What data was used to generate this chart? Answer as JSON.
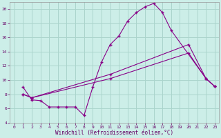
{
  "xlabel": "Windchill (Refroidissement éolien,°C)",
  "bg_color": "#cceee8",
  "grid_color": "#aad4cc",
  "line_color": "#880088",
  "xlim": [
    -0.5,
    23.5
  ],
  "ylim": [
    4,
    21
  ],
  "xticks": [
    0,
    1,
    2,
    3,
    4,
    5,
    6,
    7,
    8,
    9,
    10,
    11,
    12,
    13,
    14,
    15,
    16,
    17,
    18,
    19,
    20,
    21,
    22,
    23
  ],
  "yticks": [
    4,
    6,
    8,
    10,
    12,
    14,
    16,
    18,
    20
  ],
  "line1_x": [
    1,
    2,
    3,
    4,
    5,
    6,
    7,
    8,
    9,
    10,
    11,
    12,
    13,
    14,
    15,
    16,
    17,
    18,
    22,
    23
  ],
  "line1_y": [
    9.0,
    7.2,
    7.1,
    6.2,
    6.2,
    6.2,
    6.2,
    5.0,
    9.0,
    12.5,
    15.0,
    16.2,
    18.3,
    19.5,
    20.3,
    20.8,
    19.5,
    17.0,
    10.2,
    9.1
  ],
  "line2_x": [
    1,
    2,
    11,
    20,
    22,
    23
  ],
  "line2_y": [
    8.0,
    7.5,
    10.8,
    15.0,
    10.2,
    9.1
  ],
  "line3_x": [
    1,
    2,
    11,
    20,
    22,
    23
  ],
  "line3_y": [
    8.0,
    7.5,
    10.2,
    13.8,
    10.2,
    9.1
  ]
}
